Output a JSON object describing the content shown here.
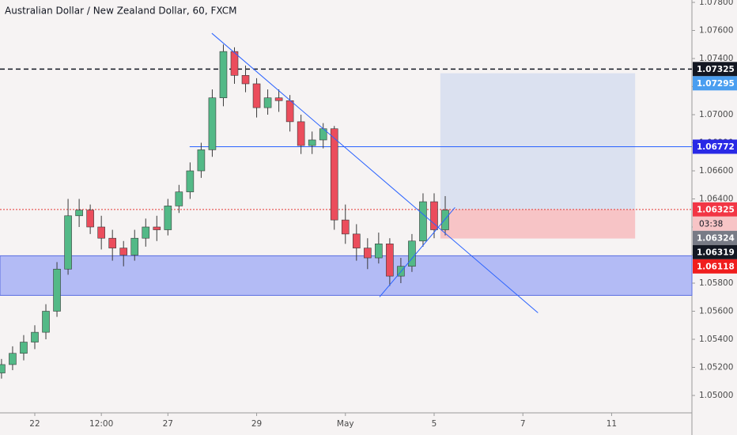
{
  "chart_data": {
    "type": "candlestick",
    "title": "Australian Dollar / New Zealand Dollar, 60, FXCM",
    "x": [
      -0.75,
      -0.5,
      -0.25,
      0,
      0.25,
      0.5,
      0.75,
      1,
      1.25,
      1.5,
      1.75,
      2,
      2.25,
      2.5,
      2.75,
      3,
      3.25,
      3.5,
      3.75,
      4,
      4.25,
      4.5,
      4.75,
      5,
      5.25,
      5.5,
      5.75,
      6,
      6.25,
      6.5,
      6.75,
      7,
      7.25,
      7.5,
      7.75,
      8,
      8.25,
      8.5,
      8.75,
      9,
      9.25
    ],
    "open": [
      1.0516,
      1.0522,
      1.053,
      1.0538,
      1.0545,
      1.056,
      1.059,
      1.0628,
      1.0632,
      1.062,
      1.0612,
      1.0605,
      1.06,
      1.0612,
      1.062,
      1.0618,
      1.0635,
      1.0645,
      1.066,
      1.0675,
      1.0712,
      1.0745,
      1.0728,
      1.0722,
      1.0705,
      1.0712,
      1.071,
      1.0695,
      1.0678,
      1.0682,
      1.069,
      1.0625,
      1.0615,
      1.0605,
      1.0598,
      1.0608,
      1.0585,
      1.0592,
      1.061,
      1.0638,
      1.0618
    ],
    "high": [
      1.0526,
      1.0535,
      1.0543,
      1.055,
      1.0565,
      1.0595,
      1.064,
      1.064,
      1.0636,
      1.0628,
      1.0618,
      1.061,
      1.0618,
      1.0626,
      1.0628,
      1.064,
      1.065,
      1.0666,
      1.068,
      1.0718,
      1.075,
      1.0748,
      1.0735,
      1.0726,
      1.0718,
      1.0718,
      1.0714,
      1.07,
      1.0688,
      1.0694,
      1.0692,
      1.0636,
      1.0622,
      1.0612,
      1.0616,
      1.0612,
      1.0598,
      1.0615,
      1.0644,
      1.0644,
      1.0642
    ],
    "low": [
      1.0512,
      1.0518,
      1.0525,
      1.0533,
      1.054,
      1.0556,
      1.0586,
      1.062,
      1.0615,
      1.0604,
      1.0596,
      1.0592,
      1.0596,
      1.0606,
      1.061,
      1.0614,
      1.063,
      1.064,
      1.0655,
      1.067,
      1.0706,
      1.0722,
      1.0716,
      1.0698,
      1.07,
      1.0702,
      1.0688,
      1.0672,
      1.0672,
      1.0676,
      1.0618,
      1.0608,
      1.0596,
      1.059,
      1.0594,
      1.0578,
      1.058,
      1.0588,
      1.0606,
      1.0612,
      1.0614
    ],
    "close": [
      1.0522,
      1.053,
      1.0538,
      1.0545,
      1.056,
      1.059,
      1.0628,
      1.0632,
      1.062,
      1.0612,
      1.0605,
      1.06,
      1.0612,
      1.062,
      1.0618,
      1.0635,
      1.0645,
      1.066,
      1.0675,
      1.0712,
      1.0745,
      1.0728,
      1.0722,
      1.0705,
      1.0712,
      1.071,
      1.0695,
      1.0678,
      1.0682,
      1.069,
      1.0625,
      1.0615,
      1.0605,
      1.0598,
      1.0608,
      1.0585,
      1.0592,
      1.061,
      1.0638,
      1.0618,
      1.0632
    ],
    "up_color": "#53b987",
    "down_color": "#eb4d5c",
    "xlim": [
      -0.784,
      14.81
    ],
    "xticks": [
      {
        "value": 0,
        "label": "22"
      },
      {
        "value": 1.5,
        "label": "12:00"
      },
      {
        "value": 3,
        "label": "27"
      },
      {
        "value": 5,
        "label": "29"
      },
      {
        "value": 7,
        "label": "May"
      },
      {
        "value": 9,
        "label": "5"
      },
      {
        "value": 11,
        "label": "7"
      },
      {
        "value": 13,
        "label": "11"
      }
    ],
    "ylim": [
      1.04876,
      1.07817
    ],
    "yticks": [
      {
        "value": 1.05,
        "label": "1.05000"
      },
      {
        "value": 1.052,
        "label": "1.05200"
      },
      {
        "value": 1.054,
        "label": "1.05400"
      },
      {
        "value": 1.056,
        "label": "1.05600"
      },
      {
        "value": 1.058,
        "label": "1.05800"
      },
      {
        "value": 1.06,
        "label": "1.06000"
      },
      {
        "value": 1.062,
        "label": "1.06200"
      },
      {
        "value": 1.064,
        "label": "1.06400"
      },
      {
        "value": 1.066,
        "label": "1.06600"
      },
      {
        "value": 1.068,
        "label": "1.06800"
      },
      {
        "value": 1.07,
        "label": "1.07000"
      },
      {
        "value": 1.072,
        "label": "1.07200"
      },
      {
        "value": 1.074,
        "label": "1.07400"
      },
      {
        "value": 1.076,
        "label": "1.07600"
      },
      {
        "value": 1.078,
        "label": "1.07800"
      }
    ],
    "grid": false,
    "zone": {
      "low": 1.05713,
      "high": 1.05995,
      "color": "#b3bbf5",
      "border": "#5b6ee1"
    },
    "position": {
      "x": [
        9.14,
        13.53
      ],
      "target": 1.07295,
      "entry": 1.06325,
      "stop": 1.06118,
      "profit_color": "#dbe1f0",
      "loss_color": "#f7c4c6"
    },
    "levels": [
      {
        "value": 1.07325,
        "style": "dashed",
        "color": "#131722"
      },
      {
        "value": 1.06325,
        "style": "dotted",
        "color": "#e53935"
      },
      {
        "value": 1.06772,
        "style": "solid",
        "color": "#2962ff",
        "x_start": 3.49
      }
    ],
    "trendlines": [
      {
        "x": [
          3.99,
          11.34
        ],
        "y": [
          1.0758,
          1.05589
        ],
        "color": "#2962ff"
      },
      {
        "x": [
          7.77,
          9.47
        ],
        "y": [
          1.05702,
          1.06339
        ],
        "color": "#2962ff"
      }
    ],
    "price_labels": [
      {
        "value": 1.07325,
        "color": "#131722"
      },
      {
        "value": 1.07295,
        "color": "#4a9ef0"
      },
      {
        "value": 1.06772,
        "color": "#2929e6"
      },
      {
        "value": 1.06325,
        "color": "#f23645",
        "countdown": "03:38"
      },
      {
        "value": 1.06324,
        "color": "#787b86"
      },
      {
        "value": 1.06319,
        "color": "#131722"
      },
      {
        "value": 1.06118,
        "color": "#f01e1e"
      }
    ]
  }
}
